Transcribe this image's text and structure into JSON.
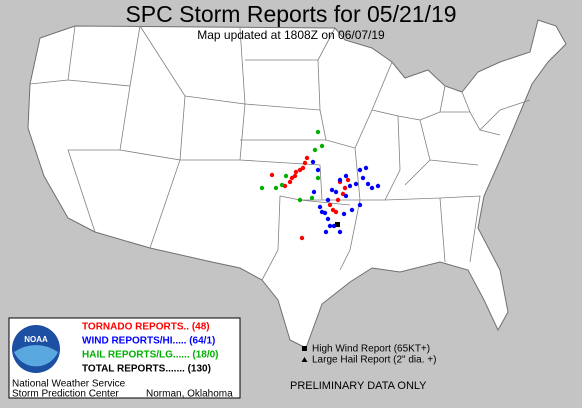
{
  "header": {
    "title": "SPC Storm Reports for 05/21/19",
    "subtitle": "Map updated at 1808Z on 06/07/19"
  },
  "legend": {
    "logo": "NOAA",
    "entries": [
      {
        "label": "TORNADO REPORTS.. (48)",
        "color": "#ff0000"
      },
      {
        "label": "WIND REPORTS/HI..... (64/1)",
        "color": "#0000ff"
      },
      {
        "label": "HAIL REPORTS/LG...... (18/0)",
        "color": "#00b000"
      },
      {
        "label": "TOTAL REPORTS....... (130)",
        "color": "#000000"
      }
    ],
    "office": [
      "National Weather Service",
      "Storm Prediction Center"
    ],
    "location": "Norman, Oklahoma"
  },
  "key": [
    "High Wind Report (65KT+)",
    "Large Hail Report (2\" dia. +)"
  ],
  "footer": "PRELIMINARY DATA ONLY"
}
